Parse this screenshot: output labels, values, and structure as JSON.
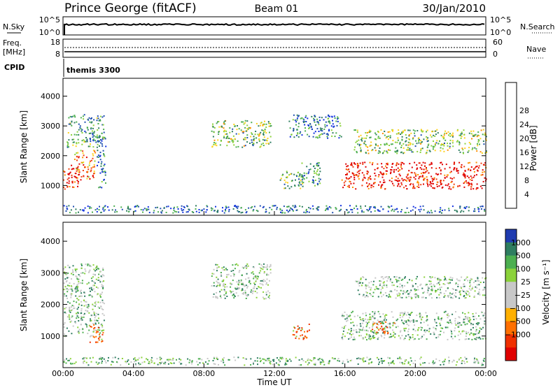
{
  "header": {
    "title": "Prince George (fitACF)",
    "beam": "Beam 01",
    "date": "30/Jan/2010"
  },
  "strip_panels": {
    "nsky_label": "N.Sky",
    "nsky_ticks": [
      "10^5",
      "10^0"
    ],
    "nsearch_label": "N.Search",
    "nsearch_ticks": [
      "10^5",
      "10^0"
    ],
    "freq_label": "Freq.",
    "freq_unit": "[MHz]",
    "freq_ticks": [
      "18",
      "8"
    ],
    "nave_label": "Nave",
    "nave_ticks": [
      "60",
      "0"
    ],
    "cpid_label": "CPID",
    "cpid_value": "themis 3300"
  },
  "chart_data": [
    {
      "type": "heatmap",
      "name": "power",
      "ylabel": "Slant Range [km]",
      "ylim": [
        0,
        4600
      ],
      "y_ticks": [
        1000,
        2000,
        3000,
        4000
      ],
      "xlim_hours": [
        0,
        24
      ],
      "colorbar": {
        "label": "Power [dB]",
        "ticks": [
          "4",
          "8",
          "12",
          "16",
          "20",
          "24",
          "28"
        ],
        "colors": [
          "#1030e0",
          "#2050b0",
          "#2e7d60",
          "#4caf50",
          "#8bd23a",
          "#ffd21c",
          "#ff9000",
          "#f04010",
          "#e00000"
        ]
      },
      "echo_regions": [
        {
          "t0": 0.0,
          "t1": 0.9,
          "r0": 900,
          "r1": 1700,
          "level": 0.95
        },
        {
          "t0": 0.6,
          "t1": 1.8,
          "r0": 1200,
          "r1": 2200,
          "level": 0.75
        },
        {
          "t0": 0.2,
          "t1": 2.3,
          "r0": 2300,
          "r1": 3400,
          "level": 0.35
        },
        {
          "t0": 1.9,
          "t1": 2.4,
          "r0": 900,
          "r1": 2700,
          "level": 0.25
        },
        {
          "t0": 8.4,
          "t1": 11.8,
          "r0": 2300,
          "r1": 3200,
          "level": 0.45
        },
        {
          "t0": 12.3,
          "t1": 13.6,
          "r0": 900,
          "r1": 1500,
          "level": 0.4
        },
        {
          "t0": 13.4,
          "t1": 14.6,
          "r0": 1000,
          "r1": 1800,
          "level": 0.3
        },
        {
          "t0": 12.8,
          "t1": 15.8,
          "r0": 2600,
          "r1": 3400,
          "level": 0.25
        },
        {
          "t0": 15.8,
          "t1": 24.0,
          "r0": 900,
          "r1": 1800,
          "level": 0.95
        },
        {
          "t0": 16.5,
          "t1": 24.0,
          "r0": 2100,
          "r1": 2900,
          "level": 0.45
        },
        {
          "t0": 0.0,
          "t1": 24.0,
          "r0": 100,
          "r1": 350,
          "level": 0.2
        }
      ]
    },
    {
      "type": "heatmap",
      "name": "velocity",
      "ylabel": "Slant Range [km]",
      "xlabel": "Time UT",
      "ylim": [
        0,
        4600
      ],
      "y_ticks": [
        1000,
        2000,
        3000,
        4000
      ],
      "x_ticks": [
        "00:00",
        "04:00",
        "08:00",
        "12:00",
        "16:00",
        "20:00",
        "00:00"
      ],
      "colorbar": {
        "label": "Velocity [m s⁻¹]",
        "ticks": [
          "1000",
          "500",
          "100",
          "25",
          "−25",
          "−100",
          "−500",
          "−1000"
        ],
        "colors": [
          "#1f3bb0",
          "#2e7d60",
          "#4caf50",
          "#8bd23a",
          "#c8c8c8",
          "#c8c8c8",
          "#ffb000",
          "#ff7000",
          "#f03000",
          "#e00000"
        ]
      },
      "echo_regions": [
        {
          "t0": 0.0,
          "t1": 2.3,
          "r0": 1000,
          "r1": 3300,
          "level": 0.5
        },
        {
          "t0": 1.5,
          "t1": 2.3,
          "r0": 800,
          "r1": 1400,
          "level": 0.8
        },
        {
          "t0": 8.4,
          "t1": 11.8,
          "r0": 2200,
          "r1": 3300,
          "level": 0.5
        },
        {
          "t0": 13.0,
          "t1": 14.0,
          "r0": 900,
          "r1": 1400,
          "level": 0.8
        },
        {
          "t0": 15.8,
          "t1": 24.0,
          "r0": 900,
          "r1": 1800,
          "level": 0.5
        },
        {
          "t0": 16.5,
          "t1": 24.0,
          "r0": 2200,
          "r1": 2900,
          "level": 0.5
        },
        {
          "t0": 17.5,
          "t1": 18.8,
          "r0": 1100,
          "r1": 1500,
          "level": 0.8
        },
        {
          "t0": 0.0,
          "t1": 24.0,
          "r0": 100,
          "r1": 350,
          "level": 0.3
        }
      ]
    }
  ]
}
